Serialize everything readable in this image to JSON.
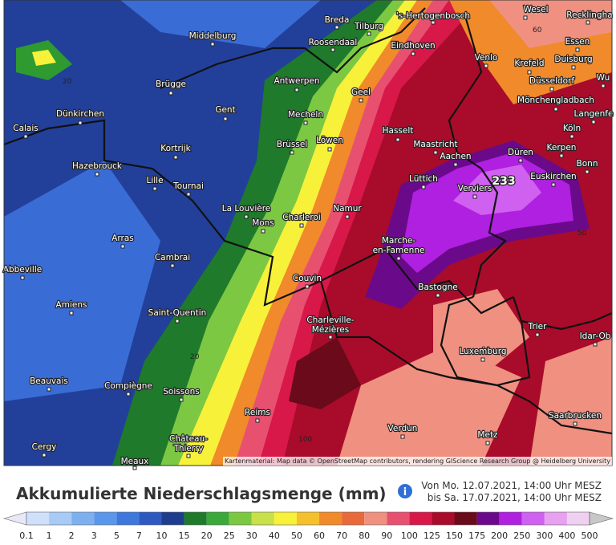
{
  "map": {
    "cities": [
      [
        "Breda"
      ],
      [
        "Tilburg"
      ],
      [
        "'s-Hertogenbosch"
      ],
      [
        "Wesel"
      ],
      [
        "Recklingha"
      ],
      [
        "Middelburg"
      ],
      [
        "Roosendaal"
      ],
      [
        "Eindhoven"
      ],
      [
        "Essen"
      ],
      [
        "Venlo"
      ],
      [
        "Krefeld"
      ],
      [
        "Duisburg"
      ],
      [
        "Düsseldorf"
      ],
      [
        "Wu"
      ],
      [
        "Brügge"
      ],
      [
        "Antwerpen"
      ],
      [
        "Geel"
      ],
      [
        "Mönchengladbach"
      ],
      [
        "Gent"
      ],
      [
        "Langenfe"
      ],
      [
        "Dünkirchen"
      ],
      [
        "Mecheln"
      ],
      [
        "Calais"
      ],
      [
        "Hasselt"
      ],
      [
        "Köln"
      ],
      [
        "Maastricht"
      ],
      [
        "Kerpen"
      ],
      [
        "Kortrijk"
      ],
      [
        "Brüssel"
      ],
      [
        "Löwen"
      ],
      [
        "Düren"
      ],
      [
        "Aachen"
      ],
      [
        "Bonn"
      ],
      [
        "Hazebrouck"
      ],
      [
        "Lille"
      ],
      [
        "Tournai"
      ],
      [
        "Lüttich"
      ],
      [
        "Verviers"
      ],
      [
        "Euskirchen"
      ],
      [
        "La Louvière"
      ],
      [
        "Namur"
      ],
      [
        "Mons"
      ],
      [
        "Charleroi"
      ],
      [
        "Arras"
      ],
      [
        "Marche-",
        "en-Famenne"
      ],
      [
        "Cambrai"
      ],
      [
        "Abbeville"
      ],
      [
        "Couvin"
      ],
      [
        "Bastogne"
      ],
      [
        "Amiens"
      ],
      [
        "Saint-Quentin"
      ],
      [
        "Charleville-",
        "Mézières"
      ],
      [
        "Trier"
      ],
      [
        "Idar-Ob"
      ],
      [
        "Luxemburg"
      ],
      [
        "Beauvais"
      ],
      [
        "Compiègne"
      ],
      [
        "Soissons"
      ],
      [
        "Saarbrucken"
      ],
      [
        "Reims"
      ],
      [
        "Verdun"
      ],
      [
        "Metz"
      ],
      [
        "Cergy"
      ],
      [
        "Château-",
        "Thierry"
      ],
      [
        "Meaux"
      ]
    ],
    "contour_labels": [
      "20",
      "60",
      "20",
      "100",
      "80",
      "50"
    ],
    "max_label": "233",
    "attribution": "Kartenmaterial: Map data © OpenStreetMap contributors, rendering GIScience Research Group @ Heidelberg University"
  },
  "legend": {
    "title": "Akkumulierte Niederschlagsmenge (mm)",
    "info_icon": "i",
    "period": [
      "Von Mo. 12.07.2021, 14:00 Uhr MESZ",
      "bis Sa. 17.07.2021, 14:00 Uhr MESZ"
    ],
    "ticks": [
      0.1,
      1,
      2,
      3,
      5,
      7,
      10,
      15,
      20,
      25,
      30,
      40,
      50,
      60,
      70,
      80,
      90,
      100,
      125,
      150,
      175,
      200,
      250,
      300,
      400,
      500
    ],
    "colors": [
      "#e8e8f8",
      "#d0e0fa",
      "#a8cbf5",
      "#7db0ef",
      "#5a96ea",
      "#3f78dc",
      "#2e59c0",
      "#1f3d8c",
      "#1f7a2c",
      "#3aa83a",
      "#7cc843",
      "#c8e04a",
      "#f7f13a",
      "#f5c02c",
      "#f08a2a",
      "#e86a3a",
      "#f09080",
      "#e85070",
      "#d81848",
      "#a80c2a",
      "#6a0a1a",
      "#6a0a8a",
      "#b020e0",
      "#d060f0",
      "#e8a0f0",
      "#f0d0f0",
      "#c8c8c8"
    ]
  }
}
